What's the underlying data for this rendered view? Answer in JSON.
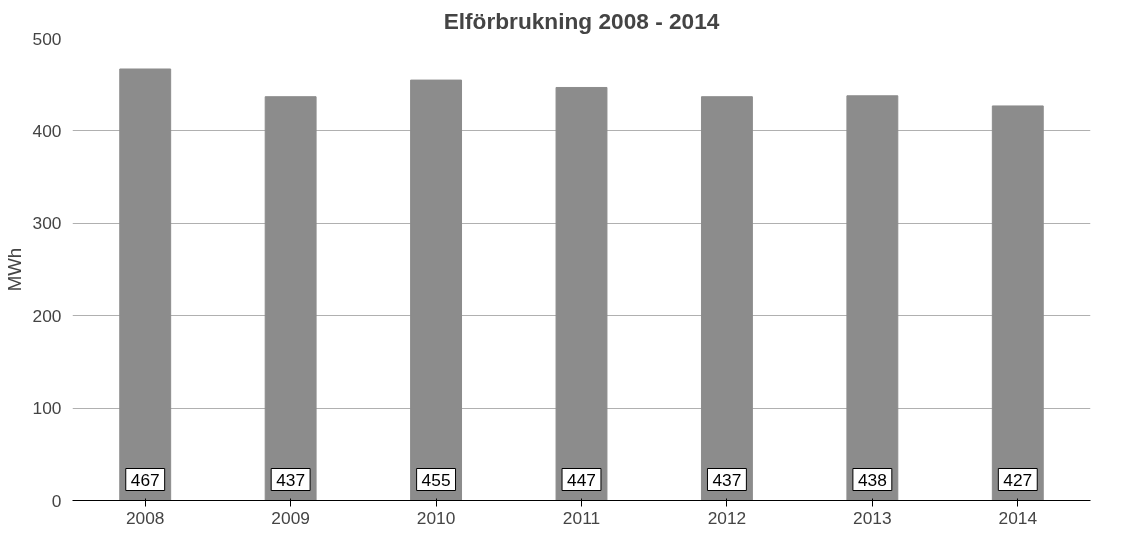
{
  "chart_data": {
    "type": "bar",
    "title": "Elförbrukning 2008 - 2014",
    "ylabel": "MWh",
    "categories": [
      "2008",
      "2009",
      "2010",
      "2011",
      "2012",
      "2013",
      "2014"
    ],
    "values": [
      467,
      437,
      455,
      447,
      437,
      438,
      427
    ],
    "color": "#8c8c8c",
    "ylim": [
      0,
      500
    ],
    "yticks": [
      0,
      100,
      200,
      300,
      400,
      500
    ],
    "grid": "y",
    "data_labels": true
  }
}
